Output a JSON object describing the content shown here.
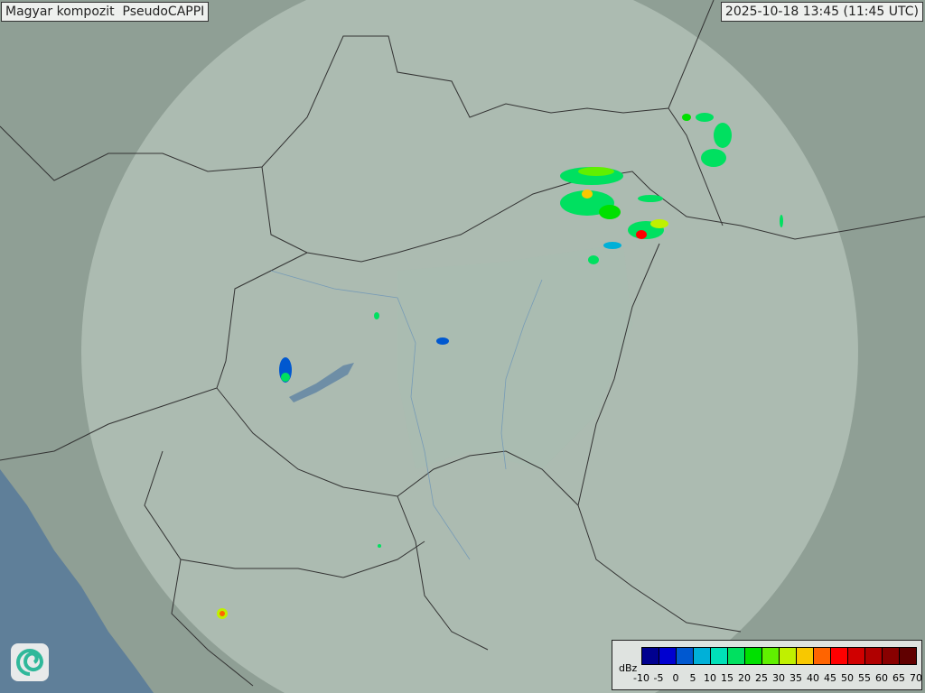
{
  "header": {
    "title": "Magyar kompozit  PseudoCAPPI",
    "timestamp": "2025-10-18 13:45 (11:45 UTC)"
  },
  "logo": {
    "icon": "swirl-logo-icon"
  },
  "legend": {
    "unit": "dBz",
    "ticks": [
      "-10",
      "-5",
      "0",
      "5",
      "10",
      "15",
      "20",
      "25",
      "30",
      "35",
      "40",
      "45",
      "50",
      "55",
      "60",
      "65",
      "70"
    ],
    "colors": [
      "#00008f",
      "#0000d0",
      "#0058d0",
      "#00b0d8",
      "#00e0b8",
      "#00e060",
      "#00e000",
      "#60f000",
      "#c0f000",
      "#f8c800",
      "#ff6400",
      "#ff0000",
      "#d00000",
      "#b00000",
      "#880000",
      "#600000"
    ]
  },
  "map": {
    "land_color": "#8f9f95",
    "coverage_color": "#b7c7bd",
    "water_color": "#6e8ea6",
    "border_color": "#333333"
  }
}
